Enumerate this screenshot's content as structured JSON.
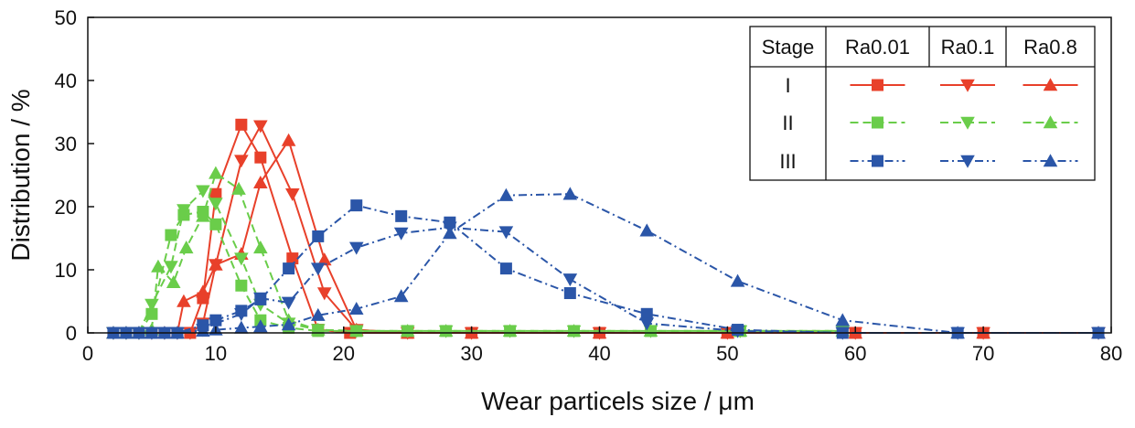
{
  "chart_data": {
    "type": "line",
    "xlabel": "Wear particels size / μm",
    "ylabel": "Distribution / %",
    "xlim": [
      0,
      80
    ],
    "ylim": [
      0,
      50
    ],
    "xticks": [
      0,
      10,
      20,
      30,
      40,
      50,
      60,
      70,
      80
    ],
    "yticks": [
      0,
      10,
      20,
      30,
      40,
      50
    ],
    "grid": false,
    "legend_position": "top-right",
    "legend_table": {
      "header": [
        "Stage",
        "Ra0.01",
        "Ra0.1",
        "Ra0.8"
      ],
      "rows": [
        "I",
        "II",
        "III"
      ]
    },
    "stage_styles": {
      "I": {
        "color": "#e8402a",
        "dash": "solid"
      },
      "II": {
        "color": "#6acd4a",
        "dash": "dashed"
      },
      "III": {
        "color": "#2b56a8",
        "dash": "dash-dot"
      }
    },
    "series": [
      {
        "stage": "I",
        "roughness": "Ra0.01",
        "marker": "square",
        "x": [
          2,
          3,
          4,
          5,
          6,
          7,
          8,
          9,
          10,
          12,
          13.5,
          16,
          18,
          20.5,
          25,
          30,
          40,
          50,
          60,
          70,
          79
        ],
        "y": [
          0,
          0,
          0,
          0,
          0,
          0,
          0,
          5.5,
          22,
          33,
          27.8,
          11.8,
          0.5,
          0,
          0,
          0,
          0,
          0,
          0,
          0,
          0
        ]
      },
      {
        "stage": "I",
        "roughness": "Ra0.1",
        "marker": "triangle-down",
        "x": [
          2,
          3,
          4,
          5,
          6,
          7,
          8,
          9,
          10,
          12,
          13.5,
          16,
          18.5,
          21,
          25,
          30,
          40,
          50,
          60,
          70,
          79
        ],
        "y": [
          0,
          0,
          0,
          0,
          0,
          0,
          0,
          1.5,
          10.8,
          27.3,
          32.8,
          22,
          6.3,
          0.5,
          0,
          0,
          0,
          0,
          0,
          0,
          0
        ]
      },
      {
        "stage": "I",
        "roughness": "Ra0.8",
        "marker": "triangle-up",
        "x": [
          2,
          3,
          4,
          5,
          6,
          7,
          7.5,
          9,
          10,
          12,
          13.5,
          15.7,
          18.5,
          21,
          25,
          30,
          40,
          50,
          60,
          70,
          79
        ],
        "y": [
          0,
          0,
          0,
          0,
          0,
          0,
          5,
          6.5,
          10.8,
          12.5,
          23.8,
          30.5,
          11.6,
          0.5,
          0,
          0,
          0,
          0,
          0,
          0,
          0
        ]
      },
      {
        "stage": "II",
        "roughness": "Ra0.01",
        "marker": "square",
        "x": [
          2,
          3,
          4,
          5,
          6.5,
          7.5,
          9,
          10,
          12,
          13.5,
          15.7,
          18,
          21,
          25,
          28,
          33,
          38,
          44,
          51,
          59
        ],
        "y": [
          0,
          0,
          0,
          3,
          15.5,
          18.7,
          19.2,
          17.2,
          7.5,
          2,
          0.8,
          0.3,
          0.3,
          0.3,
          0.3,
          0.3,
          0.3,
          0.3,
          0.3,
          0.3
        ]
      },
      {
        "stage": "II",
        "roughness": "Ra0.1",
        "marker": "triangle-down",
        "x": [
          2,
          3,
          4,
          5,
          6.5,
          7.5,
          9,
          10,
          12,
          13.5,
          15.7,
          18,
          21,
          25,
          28,
          33,
          38,
          44,
          51,
          59
        ],
        "y": [
          0,
          0,
          0,
          4.5,
          10.5,
          19.5,
          22.5,
          20.5,
          11.8,
          4.5,
          1.5,
          0.5,
          0.3,
          0.3,
          0.3,
          0.3,
          0.3,
          0.3,
          0.3,
          0.3
        ]
      },
      {
        "stage": "II",
        "roughness": "Ra0.8",
        "marker": "triangle-up",
        "x": [
          2,
          3,
          4,
          5,
          5.5,
          6.7,
          7.7,
          9,
          10,
          11.8,
          13.5,
          15.7,
          18,
          21,
          25,
          28,
          33,
          38,
          44,
          51,
          59
        ],
        "y": [
          0,
          0,
          0,
          0.5,
          10.5,
          8,
          13.5,
          18.5,
          25.3,
          22.8,
          13.5,
          2,
          0.5,
          0.3,
          0.3,
          0.3,
          0.3,
          0.3,
          0.3,
          0.3,
          0.3
        ]
      },
      {
        "stage": "III",
        "roughness": "Ra0.01",
        "marker": "square",
        "x": [
          2,
          3,
          4,
          5,
          6,
          7,
          9,
          10,
          12,
          13.5,
          15.7,
          18,
          21,
          24.5,
          28.3,
          32.7,
          37.7,
          43.7,
          50.8,
          59,
          68,
          79
        ],
        "y": [
          0,
          0,
          0,
          0,
          0,
          0,
          1.2,
          2,
          3.5,
          5.3,
          10.2,
          15.3,
          20.2,
          18.5,
          17.5,
          10.2,
          6.3,
          3,
          0.5,
          0,
          0,
          0
        ]
      },
      {
        "stage": "III",
        "roughness": "Ra0.1",
        "marker": "triangle-down",
        "x": [
          2,
          3,
          4,
          5,
          6,
          7,
          9,
          10,
          12,
          13.5,
          15.7,
          18,
          21,
          24.5,
          28.3,
          32.7,
          37.7,
          43.7,
          50.8,
          59,
          68,
          79
        ],
        "y": [
          0,
          0,
          0,
          0,
          0,
          0,
          0.5,
          1.5,
          3,
          5.5,
          4.8,
          10.2,
          13.5,
          15.8,
          16.7,
          16,
          8.5,
          1.5,
          0.3,
          0,
          0,
          0
        ]
      },
      {
        "stage": "III",
        "roughness": "Ra0.8",
        "marker": "triangle-up",
        "x": [
          2,
          3,
          4,
          5,
          6,
          7,
          9,
          10,
          12,
          13.5,
          15.7,
          18,
          21,
          24.5,
          28.3,
          32.7,
          37.7,
          43.7,
          50.8,
          59,
          68,
          79
        ],
        "y": [
          0,
          0,
          0,
          0,
          0,
          0,
          0.3,
          0.5,
          0.8,
          1,
          1.3,
          2.8,
          3.8,
          5.8,
          15.8,
          21.8,
          22,
          16.2,
          8.2,
          2,
          0,
          0
        ]
      }
    ]
  }
}
